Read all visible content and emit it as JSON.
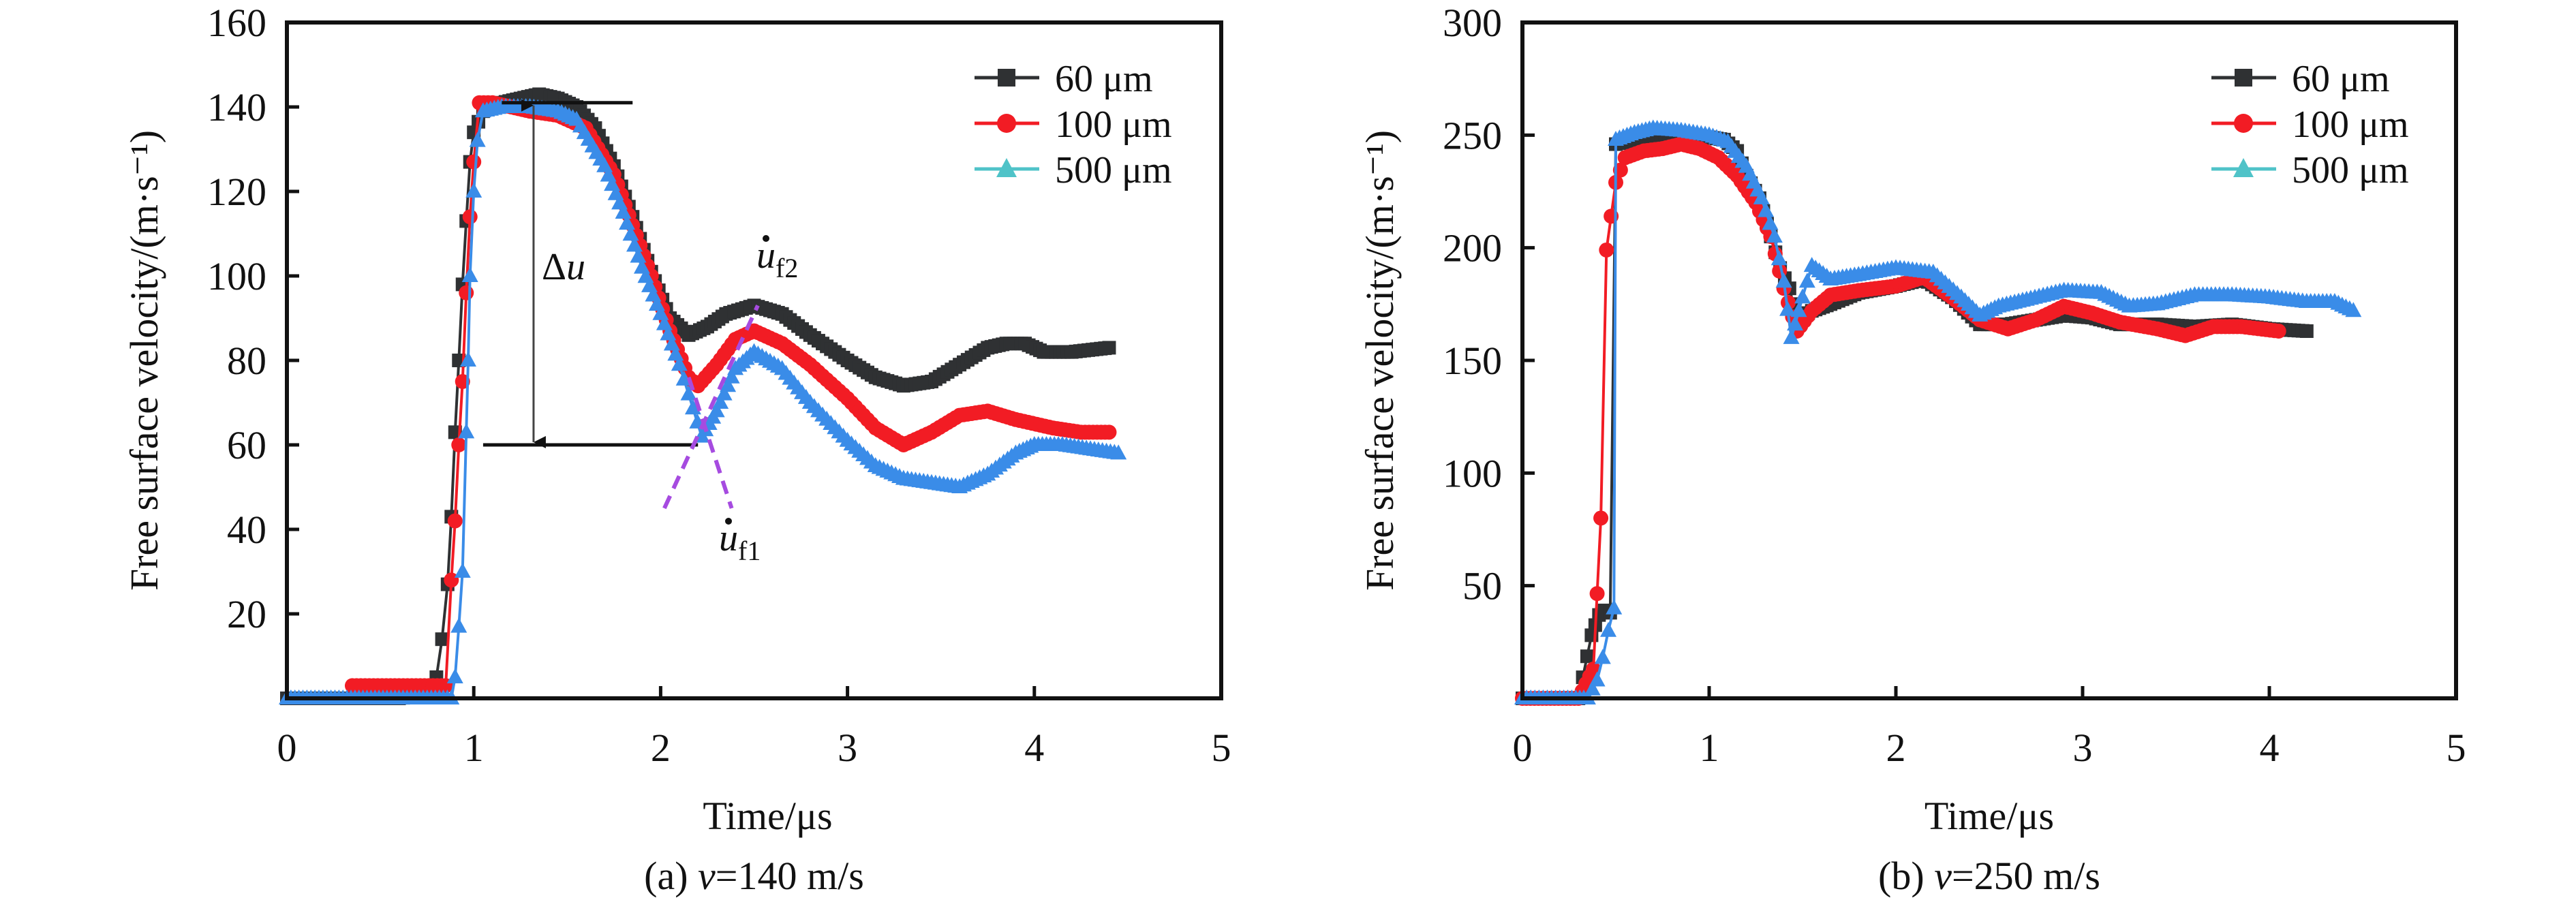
{
  "chart_data": [
    {
      "type": "line",
      "panel": "a",
      "caption_prefix": "(a) ",
      "caption_var": "v",
      "caption_suffix": "=140 m/s",
      "xlabel": "Time/μs",
      "ylabel": "Free surface velocity/(m·s⁻¹)",
      "xlim": [
        0,
        5
      ],
      "ylim": [
        0,
        160
      ],
      "xticks": [
        0,
        1,
        2,
        3,
        4,
        5
      ],
      "yticks": [
        20,
        40,
        60,
        80,
        100,
        120,
        140,
        160
      ],
      "xtick_labels": [
        "0",
        "1",
        "2",
        "3",
        "4",
        "5"
      ],
      "ytick_labels": [
        "20",
        "40",
        "60",
        "80",
        "100",
        "120",
        "140",
        "160"
      ],
      "grid": false,
      "legend_position": "top-right",
      "series": [
        {
          "name": "60 μm",
          "marker": "square",
          "color": "#2f3133",
          "points": [
            [
              0.0,
              0
            ],
            [
              0.3,
              0
            ],
            [
              0.6,
              0
            ],
            [
              0.75,
              1
            ],
            [
              0.8,
              5
            ],
            [
              0.83,
              14
            ],
            [
              0.86,
              27
            ],
            [
              0.88,
              43
            ],
            [
              0.9,
              63
            ],
            [
              0.92,
              80
            ],
            [
              0.94,
              98
            ],
            [
              0.96,
              113
            ],
            [
              0.98,
              127
            ],
            [
              1.0,
              134
            ],
            [
              1.05,
              139
            ],
            [
              1.15,
              141
            ],
            [
              1.25,
              142
            ],
            [
              1.35,
              143
            ],
            [
              1.45,
              142
            ],
            [
              1.55,
              140
            ],
            [
              1.65,
              135
            ],
            [
              1.75,
              126
            ],
            [
              1.85,
              114
            ],
            [
              1.95,
              101
            ],
            [
              2.05,
              90
            ],
            [
              2.15,
              86
            ],
            [
              2.25,
              88
            ],
            [
              2.35,
              91
            ],
            [
              2.5,
              93
            ],
            [
              2.65,
              91
            ],
            [
              2.8,
              86
            ],
            [
              3.0,
              80
            ],
            [
              3.15,
              76
            ],
            [
              3.3,
              74
            ],
            [
              3.45,
              75
            ],
            [
              3.6,
              79
            ],
            [
              3.75,
              83
            ],
            [
              3.85,
              84
            ],
            [
              3.95,
              84
            ],
            [
              4.05,
              82
            ],
            [
              4.2,
              82
            ],
            [
              4.4,
              83
            ]
          ]
        },
        {
          "name": "100 μm",
          "marker": "circle",
          "color": "#f21c24",
          "points": [
            [
              0.35,
              3
            ],
            [
              0.6,
              3
            ],
            [
              0.85,
              3
            ],
            [
              0.88,
              28
            ],
            [
              0.9,
              42
            ],
            [
              0.92,
              60
            ],
            [
              0.94,
              75
            ],
            [
              0.96,
              96
            ],
            [
              0.98,
              114
            ],
            [
              1.0,
              127
            ],
            [
              1.03,
              141
            ],
            [
              1.1,
              141
            ],
            [
              1.2,
              140
            ],
            [
              1.3,
              139
            ],
            [
              1.45,
              138
            ],
            [
              1.6,
              135
            ],
            [
              1.75,
              124
            ],
            [
              1.85,
              112
            ],
            [
              1.95,
              100
            ],
            [
              2.05,
              87
            ],
            [
              2.15,
              76
            ],
            [
              2.2,
              74
            ],
            [
              2.3,
              79
            ],
            [
              2.4,
              85
            ],
            [
              2.5,
              87
            ],
            [
              2.65,
              84
            ],
            [
              2.8,
              79
            ],
            [
              3.0,
              71
            ],
            [
              3.15,
              64
            ],
            [
              3.3,
              60
            ],
            [
              3.45,
              63
            ],
            [
              3.6,
              67
            ],
            [
              3.75,
              68
            ],
            [
              3.9,
              66
            ],
            [
              4.1,
              64
            ],
            [
              4.25,
              63
            ],
            [
              4.4,
              63
            ]
          ]
        },
        {
          "name": "500 μm",
          "marker": "triangle",
          "color": "#4fc3c8",
          "marker_color": "#3a8ce8",
          "points": [
            [
              0.0,
              0
            ],
            [
              0.3,
              0
            ],
            [
              0.6,
              0
            ],
            [
              0.88,
              0
            ],
            [
              0.9,
              5
            ],
            [
              0.92,
              17
            ],
            [
              0.94,
              30
            ],
            [
              0.96,
              63
            ],
            [
              0.97,
              80
            ],
            [
              0.98,
              100
            ],
            [
              1.0,
              120
            ],
            [
              1.02,
              132
            ],
            [
              1.05,
              139
            ],
            [
              1.15,
              140
            ],
            [
              1.3,
              140
            ],
            [
              1.45,
              139
            ],
            [
              1.55,
              137
            ],
            [
              1.7,
              126
            ],
            [
              1.8,
              115
            ],
            [
              1.9,
              102
            ],
            [
              2.0,
              91
            ],
            [
              2.1,
              79
            ],
            [
              2.15,
              72
            ],
            [
              2.22,
              62
            ],
            [
              2.3,
              68
            ],
            [
              2.4,
              78
            ],
            [
              2.5,
              82
            ],
            [
              2.65,
              78
            ],
            [
              2.8,
              70
            ],
            [
              3.0,
              61
            ],
            [
              3.15,
              55
            ],
            [
              3.3,
              52
            ],
            [
              3.45,
              51
            ],
            [
              3.6,
              50
            ],
            [
              3.75,
              53
            ],
            [
              3.9,
              58
            ],
            [
              4.0,
              60
            ],
            [
              4.15,
              60
            ],
            [
              4.3,
              59
            ],
            [
              4.45,
              58
            ]
          ]
        }
      ],
      "annotations": {
        "delta_u": {
          "symbol": "Δ",
          "var": "u",
          "top_value": 141,
          "bottom_value": 60,
          "top_x": [
            1.15,
            1.85
          ],
          "bottom_x": [
            1.05,
            2.2
          ],
          "arrow_x": 1.32
        },
        "uf1": {
          "base": "u",
          "sub": "f1",
          "dot": true
        },
        "uf2": {
          "base": "u",
          "sub": "f2",
          "dot": true
        },
        "dashed_lines": [
          {
            "from": [
              2.02,
              45
            ],
            "to": [
              2.52,
              93
            ]
          },
          {
            "from": [
              2.15,
              76
            ],
            "to": [
              2.38,
              45
            ]
          }
        ],
        "dashed_color": "#a64be0"
      }
    },
    {
      "type": "line",
      "panel": "b",
      "caption_prefix": "(b) ",
      "caption_var": "v",
      "caption_suffix": "=250 m/s",
      "xlabel": "Time/μs",
      "ylabel": "Free surface velocity/(m·s⁻¹)",
      "xlim": [
        0,
        5
      ],
      "ylim": [
        0,
        300
      ],
      "xticks": [
        0,
        1,
        2,
        3,
        4,
        5
      ],
      "yticks": [
        50,
        100,
        150,
        200,
        250,
        300
      ],
      "xtick_labels": [
        "0",
        "1",
        "2",
        "3",
        "4",
        "5"
      ],
      "ytick_labels": [
        "50",
        "100",
        "150",
        "200",
        "250",
        "300"
      ],
      "grid": false,
      "legend_position": "top-right",
      "series": [
        {
          "name": "60 μm",
          "marker": "square",
          "color": "#2f3133",
          "points": [
            [
              0.0,
              0
            ],
            [
              0.2,
              0
            ],
            [
              0.3,
              0
            ],
            [
              0.37,
              28
            ],
            [
              0.41,
              37
            ],
            [
              0.44,
              39
            ],
            [
              0.47,
              38
            ],
            [
              0.5,
              246
            ],
            [
              0.6,
              248
            ],
            [
              0.7,
              249
            ],
            [
              0.85,
              249
            ],
            [
              1.0,
              249
            ],
            [
              1.08,
              248
            ],
            [
              1.15,
              243
            ],
            [
              1.2,
              232
            ],
            [
              1.27,
              222
            ],
            [
              1.33,
              205
            ],
            [
              1.38,
              191
            ],
            [
              1.43,
              182
            ],
            [
              1.47,
              168
            ],
            [
              1.55,
              172
            ],
            [
              1.65,
              175
            ],
            [
              1.8,
              180
            ],
            [
              2.0,
              183
            ],
            [
              2.15,
              186
            ],
            [
              2.3,
              178
            ],
            [
              2.45,
              166
            ],
            [
              2.6,
              166
            ],
            [
              2.75,
              168
            ],
            [
              2.9,
              170
            ],
            [
              3.05,
              169
            ],
            [
              3.2,
              166
            ],
            [
              3.4,
              166
            ],
            [
              3.6,
              165
            ],
            [
              3.8,
              166
            ],
            [
              4.0,
              164
            ],
            [
              4.2,
              163
            ]
          ]
        },
        {
          "name": "100 μm",
          "marker": "circle",
          "color": "#f21c24",
          "points": [
            [
              0.0,
              0
            ],
            [
              0.3,
              0
            ],
            [
              0.38,
              13
            ],
            [
              0.42,
              80
            ],
            [
              0.45,
              199
            ],
            [
              0.5,
              229
            ],
            [
              0.55,
              240
            ],
            [
              0.65,
              243
            ],
            [
              0.75,
              244
            ],
            [
              0.85,
              246
            ],
            [
              0.95,
              244
            ],
            [
              1.05,
              240
            ],
            [
              1.15,
              232
            ],
            [
              1.25,
              220
            ],
            [
              1.33,
              205
            ],
            [
              1.4,
              182
            ],
            [
              1.47,
              163
            ],
            [
              1.55,
              172
            ],
            [
              1.65,
              179
            ],
            [
              1.8,
              181
            ],
            [
              2.0,
              183
            ],
            [
              2.15,
              187
            ],
            [
              2.3,
              178
            ],
            [
              2.45,
              168
            ],
            [
              2.6,
              164
            ],
            [
              2.75,
              168
            ],
            [
              2.9,
              174
            ],
            [
              3.05,
              171
            ],
            [
              3.2,
              167
            ],
            [
              3.4,
              164
            ],
            [
              3.55,
              161
            ],
            [
              3.7,
              165
            ],
            [
              3.85,
              165
            ],
            [
              4.05,
              163
            ]
          ]
        },
        {
          "name": "500 μm",
          "marker": "triangle",
          "color": "#4fc3c8",
          "marker_color": "#3a8ce8",
          "points": [
            [
              0.0,
              0
            ],
            [
              0.2,
              0
            ],
            [
              0.35,
              0
            ],
            [
              0.4,
              8
            ],
            [
              0.43,
              18
            ],
            [
              0.46,
              30
            ],
            [
              0.49,
              40
            ],
            [
              0.5,
              248
            ],
            [
              0.6,
              251
            ],
            [
              0.7,
              253
            ],
            [
              0.85,
              252
            ],
            [
              1.0,
              250
            ],
            [
              1.1,
              247
            ],
            [
              1.2,
              236
            ],
            [
              1.28,
              222
            ],
            [
              1.35,
              205
            ],
            [
              1.4,
              185
            ],
            [
              1.44,
              160
            ],
            [
              1.5,
              178
            ],
            [
              1.55,
              192
            ],
            [
              1.65,
              186
            ],
            [
              1.8,
              188
            ],
            [
              2.0,
              191
            ],
            [
              2.2,
              189
            ],
            [
              2.35,
              178
            ],
            [
              2.45,
              170
            ],
            [
              2.55,
              174
            ],
            [
              2.7,
              177
            ],
            [
              2.9,
              181
            ],
            [
              3.1,
              180
            ],
            [
              3.25,
              174
            ],
            [
              3.4,
              175
            ],
            [
              3.6,
              179
            ],
            [
              3.8,
              179
            ],
            [
              4.0,
              178
            ],
            [
              4.2,
              176
            ],
            [
              4.35,
              176
            ],
            [
              4.45,
              172
            ]
          ]
        }
      ]
    }
  ]
}
